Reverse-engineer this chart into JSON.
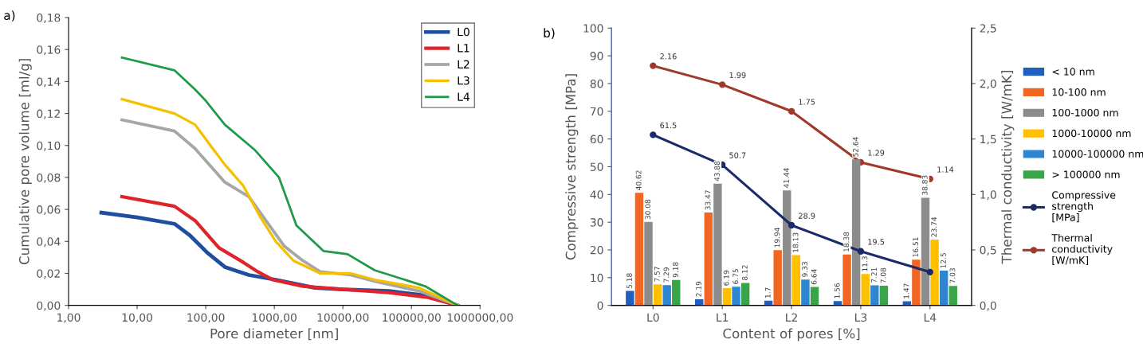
{
  "chart_data": [
    {
      "type": "line",
      "xlabel": "Pore diameter [nm]",
      "ylabel": "Cumulative pore volume [ml/g]",
      "annotations": [
        "a)"
      ],
      "log": "x",
      "grid": false,
      "legend": "top right",
      "marker": "none",
      "xlim": [
        1,
        1000000
      ],
      "xticks": [
        {
          "value": 1,
          "label": "1,00"
        },
        {
          "value": 10,
          "label": "10,00"
        },
        {
          "value": 100,
          "label": "100,00"
        },
        {
          "value": 1000,
          "label": "1000,00"
        },
        {
          "value": 10000,
          "label": "10000,00"
        },
        {
          "value": 100000,
          "label": "100000,00"
        },
        {
          "value": 1000000,
          "label": "1000000,00"
        }
      ],
      "ylim": [
        0,
        0.18
      ],
      "yticks": [
        {
          "value": 0,
          "label": "0,00"
        },
        {
          "value": 0.02,
          "label": "0,02"
        },
        {
          "value": 0.04,
          "label": "0,04"
        },
        {
          "value": 0.06,
          "label": "0,06"
        },
        {
          "value": 0.08,
          "label": "0,08"
        },
        {
          "value": 0.1,
          "label": "0,10"
        },
        {
          "value": 0.12,
          "label": "0,12"
        },
        {
          "value": 0.14,
          "label": "0,14"
        },
        {
          "value": 0.16,
          "label": "0,16"
        },
        {
          "value": 0.18,
          "label": "0,18"
        }
      ],
      "series": [
        {
          "name": "L0",
          "color": "#1f4e9e",
          "x": [
            3,
            10,
            35,
            58,
            105,
            190,
            425,
            1050,
            3900,
            10000,
            47000,
            174000,
            470000
          ],
          "values": [
            0.058,
            0.055,
            0.051,
            0.044,
            0.033,
            0.024,
            0.019,
            0.016,
            0.011,
            0.01,
            0.009,
            0.006,
            0.0
          ]
        },
        {
          "name": "L1",
          "color": "#e0242b",
          "x": [
            6,
            35,
            70,
            156,
            350,
            575,
            950,
            2600,
            10500,
            47000,
            174000,
            470000
          ],
          "values": [
            0.068,
            0.062,
            0.053,
            0.036,
            0.027,
            0.021,
            0.016,
            0.012,
            0.01,
            0.008,
            0.005,
            0.0
          ]
        },
        {
          "name": "L2",
          "color": "#a6a6a6",
          "x": [
            6,
            35,
            70,
            190,
            425,
            700,
            1400,
            2600,
            4700,
            13000,
            29000,
            128000,
            470000
          ],
          "values": [
            0.116,
            0.109,
            0.098,
            0.077,
            0.068,
            0.055,
            0.037,
            0.028,
            0.021,
            0.019,
            0.015,
            0.009,
            0.0
          ]
        },
        {
          "name": "L3",
          "color": "#f5c000",
          "x": [
            6,
            35,
            70,
            117,
            190,
            350,
            630,
            1050,
            1900,
            4700,
            13000,
            29000,
            128000,
            470000
          ],
          "values": [
            0.129,
            0.12,
            0.113,
            0.1,
            0.088,
            0.075,
            0.055,
            0.04,
            0.028,
            0.02,
            0.02,
            0.016,
            0.011,
            0.0
          ]
        },
        {
          "name": "L4",
          "color": "#1f9a4a",
          "x": [
            6,
            35,
            70,
            100,
            190,
            525,
            1170,
            2100,
            5200,
            11700,
            29000,
            158000,
            470000
          ],
          "values": [
            0.155,
            0.147,
            0.135,
            0.128,
            0.113,
            0.097,
            0.08,
            0.05,
            0.034,
            0.032,
            0.022,
            0.012,
            0.0
          ]
        }
      ]
    },
    {
      "type": "bar",
      "xlabel": "Content of pores [%]",
      "ylabel": "Compressive strength [MPa]",
      "y2label": "Thermal conductivity [W/mK]",
      "annotations": [
        "b)"
      ],
      "grid": false,
      "legend": "right",
      "categories": [
        "L0",
        "L1",
        "L2",
        "L3",
        "L4"
      ],
      "ylim": [
        0,
        100
      ],
      "yticks": [
        0,
        10,
        20,
        30,
        40,
        50,
        60,
        70,
        80,
        90,
        100
      ],
      "y2lim": [
        0,
        2.5
      ],
      "y2ticks": [
        {
          "value": 0,
          "label": "0,0"
        },
        {
          "value": 0.5,
          "label": "0,5"
        },
        {
          "value": 1.0,
          "label": "1,0"
        },
        {
          "value": 1.5,
          "label": "1,5"
        },
        {
          "value": 2.0,
          "label": "2,0"
        },
        {
          "value": 2.5,
          "label": "2,5"
        }
      ],
      "series": [
        {
          "name": "< 10 nm",
          "color": "#1f5fbf",
          "data_labels": true,
          "values": [
            5.18,
            2.19,
            1.7,
            1.56,
            1.47
          ]
        },
        {
          "name": "10-100 nm",
          "color": "#f26522",
          "data_labels": true,
          "values": [
            40.62,
            33.47,
            19.94,
            18.38,
            16.51
          ]
        },
        {
          "name": "100-1000 nm",
          "color": "#8c8c8c",
          "data_labels": true,
          "values": [
            30.08,
            43.88,
            41.44,
            52.64,
            38.83
          ]
        },
        {
          "name": "1000-10000 nm",
          "color": "#ffc000",
          "data_labels": true,
          "values": [
            7.57,
            6.19,
            18.13,
            11.3,
            23.74
          ]
        },
        {
          "name": "10000-100000 nm",
          "color": "#2e86d1",
          "data_labels": true,
          "values": [
            7.29,
            6.75,
            9.33,
            7.21,
            12.5
          ]
        },
        {
          "name": "> 100000 nm",
          "color": "#3aa548",
          "data_labels": true,
          "values": [
            9.18,
            8.12,
            6.64,
            7.08,
            7.03
          ]
        },
        {
          "name": "Compressive strength [MPa]",
          "type": "line",
          "marker": "circle",
          "color": "#1b2a6b",
          "values": [
            61.5,
            50.7,
            28.9,
            19.5,
            12
          ],
          "value_labels": [
            "61.5",
            "50.7",
            "28.9",
            "19.5",
            null
          ]
        },
        {
          "name": "Thermal conductivity [W/mK]",
          "type": "line",
          "marker": "circle",
          "axis": "y2",
          "color": "#a0392a",
          "values": [
            2.16,
            1.99,
            1.75,
            1.29,
            1.14
          ],
          "value_labels": [
            "2.16",
            "1.99",
            "1.75",
            "1.29",
            "1.14"
          ]
        }
      ]
    }
  ]
}
